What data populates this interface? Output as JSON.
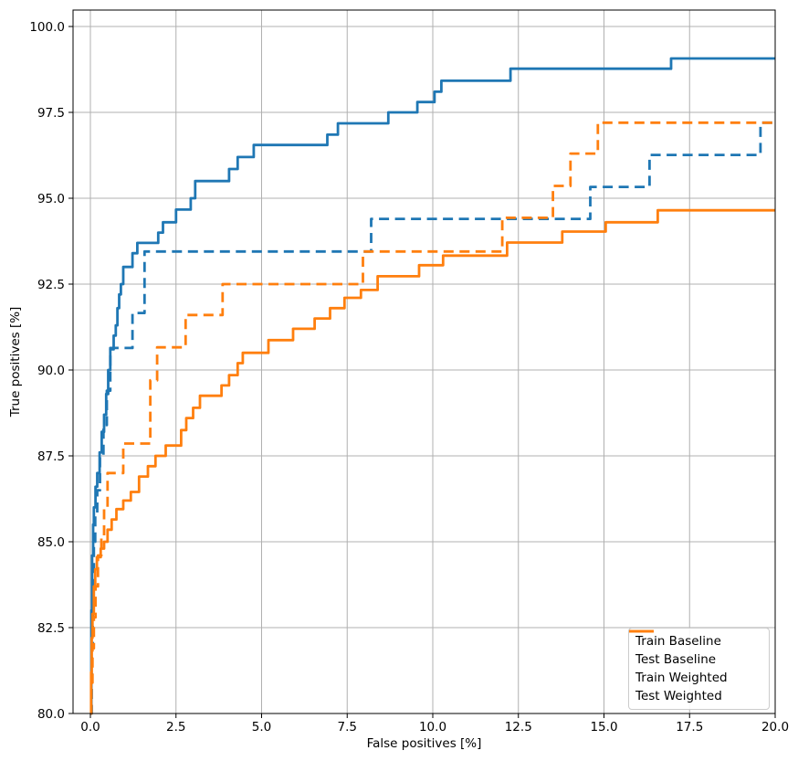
{
  "chart_data": {
    "type": "line",
    "subtype": "roc-step-curves",
    "title": "",
    "xlabel": "False positives [%]",
    "ylabel": "True positives [%]",
    "xlim": [
      -0.51,
      20.0
    ],
    "ylim": [
      80.0,
      100.48
    ],
    "x_ticks": [
      0.0,
      2.5,
      5.0,
      7.5,
      10.0,
      12.5,
      15.0,
      17.5,
      20.0
    ],
    "y_ticks": [
      80.0,
      82.5,
      85.0,
      87.5,
      90.0,
      92.5,
      95.0,
      97.5,
      100.0
    ],
    "x_tick_labels": [
      "0.0",
      "2.5",
      "5.0",
      "7.5",
      "10.0",
      "12.5",
      "15.0",
      "17.5",
      "20.0"
    ],
    "y_tick_labels": [
      "80.0",
      "82.5",
      "85.0",
      "87.5",
      "90.0",
      "92.5",
      "95.0",
      "97.5",
      "100.0"
    ],
    "grid": true,
    "grid_color": "#b0b0b0",
    "legend_position": "lower right",
    "line_mode": "step-post",
    "series": [
      {
        "name": "Train Baseline",
        "color": "#1f77b4",
        "dash": "solid",
        "points": [
          [
            0.0,
            80.0
          ],
          [
            0.03,
            83.0
          ],
          [
            0.05,
            84.6
          ],
          [
            0.08,
            85.5
          ],
          [
            0.1,
            86.0
          ],
          [
            0.15,
            86.6
          ],
          [
            0.2,
            87.0
          ],
          [
            0.27,
            87.6
          ],
          [
            0.33,
            88.2
          ],
          [
            0.4,
            88.7
          ],
          [
            0.46,
            89.3
          ],
          [
            0.52,
            90.0
          ],
          [
            0.58,
            90.6
          ],
          [
            0.68,
            91.0
          ],
          [
            0.74,
            91.3
          ],
          [
            0.79,
            91.8
          ],
          [
            0.84,
            92.2
          ],
          [
            0.89,
            92.5
          ],
          [
            0.96,
            93.0
          ],
          [
            1.23,
            93.4
          ],
          [
            1.37,
            93.7
          ],
          [
            1.98,
            94.0
          ],
          [
            2.12,
            94.3
          ],
          [
            2.5,
            94.67
          ],
          [
            2.93,
            95.0
          ],
          [
            3.06,
            95.5
          ],
          [
            4.05,
            95.85
          ],
          [
            4.3,
            96.2
          ],
          [
            4.77,
            96.55
          ],
          [
            6.92,
            96.85
          ],
          [
            7.23,
            97.18
          ],
          [
            8.7,
            97.5
          ],
          [
            9.55,
            97.8
          ],
          [
            10.05,
            98.1
          ],
          [
            10.25,
            98.42
          ],
          [
            12.27,
            98.77
          ],
          [
            16.96,
            99.07
          ],
          [
            20.0,
            99.07
          ]
        ]
      },
      {
        "name": "Test Baseline",
        "color": "#1f77b4",
        "dash": "dashed",
        "points": [
          [
            0.0,
            80.0
          ],
          [
            0.04,
            82.0
          ],
          [
            0.07,
            83.8
          ],
          [
            0.1,
            85.0
          ],
          [
            0.14,
            85.8
          ],
          [
            0.2,
            86.5
          ],
          [
            0.28,
            87.5
          ],
          [
            0.38,
            88.4
          ],
          [
            0.48,
            89.4
          ],
          [
            0.58,
            90.64
          ],
          [
            1.23,
            91.66
          ],
          [
            1.58,
            93.45
          ],
          [
            8.2,
            94.4
          ],
          [
            14.6,
            95.33
          ],
          [
            16.33,
            96.26
          ],
          [
            19.57,
            97.2
          ],
          [
            20.0,
            97.2
          ]
        ]
      },
      {
        "name": "Train Weighted",
        "color": "#ff7f0e",
        "dash": "solid",
        "points": [
          [
            0.0,
            80.0
          ],
          [
            0.02,
            81.2
          ],
          [
            0.04,
            82.2
          ],
          [
            0.06,
            82.9
          ],
          [
            0.1,
            83.7
          ],
          [
            0.14,
            84.2
          ],
          [
            0.19,
            84.55
          ],
          [
            0.3,
            84.8
          ],
          [
            0.4,
            85.0
          ],
          [
            0.5,
            85.35
          ],
          [
            0.62,
            85.65
          ],
          [
            0.76,
            85.95
          ],
          [
            0.96,
            86.2
          ],
          [
            1.18,
            86.45
          ],
          [
            1.42,
            86.9
          ],
          [
            1.68,
            87.2
          ],
          [
            1.9,
            87.5
          ],
          [
            2.2,
            87.8
          ],
          [
            2.65,
            88.25
          ],
          [
            2.8,
            88.6
          ],
          [
            3.0,
            88.9
          ],
          [
            3.2,
            89.25
          ],
          [
            3.83,
            89.55
          ],
          [
            4.05,
            89.85
          ],
          [
            4.3,
            90.2
          ],
          [
            4.45,
            90.5
          ],
          [
            5.2,
            90.87
          ],
          [
            5.92,
            91.2
          ],
          [
            6.55,
            91.5
          ],
          [
            7.0,
            91.8
          ],
          [
            7.42,
            92.1
          ],
          [
            7.9,
            92.33
          ],
          [
            8.39,
            92.73
          ],
          [
            9.6,
            93.05
          ],
          [
            10.3,
            93.33
          ],
          [
            12.17,
            93.71
          ],
          [
            13.78,
            94.03
          ],
          [
            15.05,
            94.3
          ],
          [
            16.57,
            94.65
          ],
          [
            20.0,
            94.65
          ]
        ]
      },
      {
        "name": "Test Weighted",
        "color": "#ff7f0e",
        "dash": "dashed",
        "points": [
          [
            0.0,
            80.0
          ],
          [
            0.03,
            80.9
          ],
          [
            0.06,
            81.9
          ],
          [
            0.1,
            82.8
          ],
          [
            0.15,
            83.7
          ],
          [
            0.22,
            84.6
          ],
          [
            0.32,
            85.1
          ],
          [
            0.4,
            86.0
          ],
          [
            0.5,
            87.0
          ],
          [
            0.96,
            87.86
          ],
          [
            1.75,
            89.7
          ],
          [
            1.95,
            90.66
          ],
          [
            2.78,
            91.6
          ],
          [
            3.86,
            92.5
          ],
          [
            7.96,
            93.45
          ],
          [
            12.03,
            94.43
          ],
          [
            13.51,
            95.36
          ],
          [
            14.02,
            96.3
          ],
          [
            14.82,
            97.2
          ],
          [
            20.0,
            97.2
          ]
        ]
      }
    ]
  },
  "colors": {
    "blue": "#1f77b4",
    "orange": "#ff7f0e",
    "grid": "#b0b0b0",
    "spine": "#000000",
    "background": "#ffffff",
    "legend_border": "#cccccc"
  }
}
